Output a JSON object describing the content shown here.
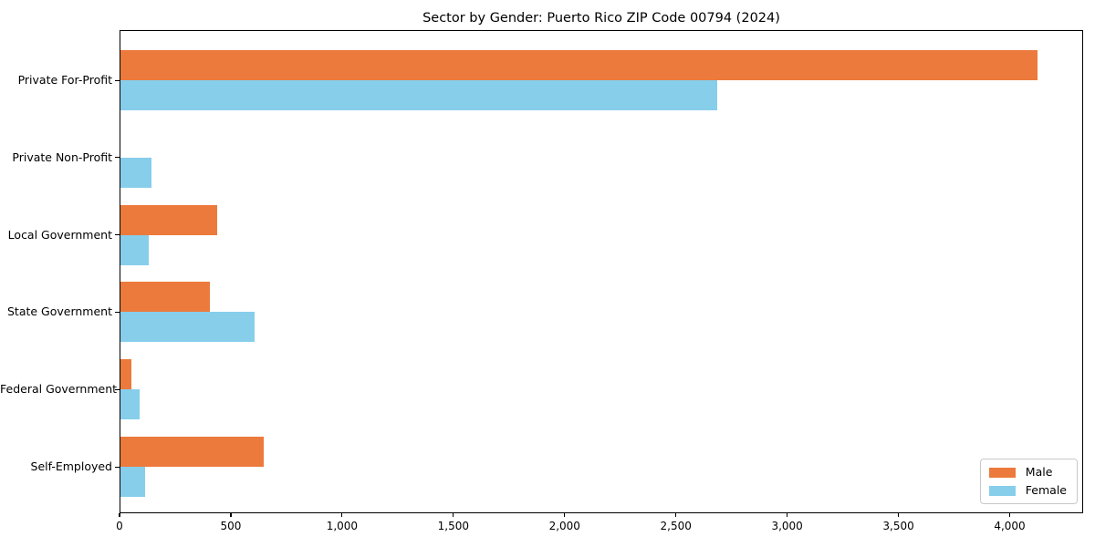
{
  "title": "Sector by Gender: Puerto Rico ZIP Code 00794 (2024)",
  "colors": {
    "male": "#EC7A3C",
    "female": "#87CEEB",
    "spine": "#000000",
    "legend_border": "#C9C9C9",
    "background": "#FFFFFF"
  },
  "legend": {
    "position": "lower right",
    "items": [
      {
        "label": "Male",
        "color": "#EC7A3C"
      },
      {
        "label": "Female",
        "color": "#87CEEB"
      }
    ]
  },
  "chart_data": {
    "type": "bar",
    "orientation": "horizontal",
    "title": "Sector by Gender: Puerto Rico ZIP Code 00794 (2024)",
    "categories": [
      "Private For-Profit",
      "Private Non-Profit",
      "Local Government",
      "State Government",
      "Federal Government",
      "Self-Employed"
    ],
    "series": [
      {
        "name": "Male",
        "color": "#EC7A3C",
        "values": [
          4120,
          0,
          435,
          400,
          50,
          645
        ]
      },
      {
        "name": "Female",
        "color": "#87CEEB",
        "values": [
          2680,
          140,
          125,
          600,
          85,
          110
        ]
      }
    ],
    "xlabel": "",
    "ylabel": "",
    "xlim": [
      0,
      4330
    ],
    "xticks": [
      0,
      500,
      1000,
      1500,
      2000,
      2500,
      3000,
      3500,
      4000
    ],
    "xtick_labels": [
      "0",
      "500",
      "1,000",
      "1,500",
      "2,000",
      "2,500",
      "3,000",
      "3,500",
      "4,000"
    ],
    "grid": false,
    "legend_position": "lower right"
  }
}
